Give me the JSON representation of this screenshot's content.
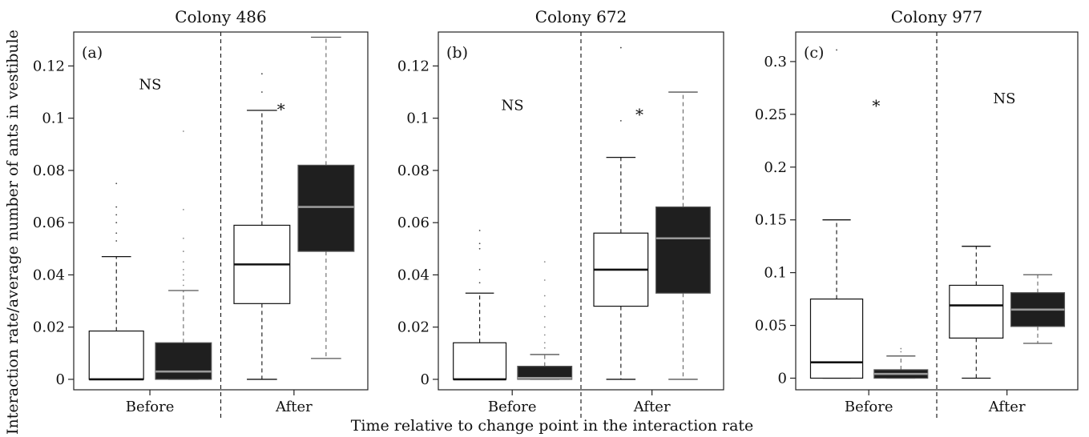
{
  "figure": {
    "ylabel": "Interaction rate/average number of ants in vestibule",
    "xlabel": "Time relative to change point in the interaction rate"
  },
  "colors": {
    "open_box": "#ffffff",
    "filled_box": "#1f1f1f",
    "open_median": "#111111",
    "filled_median": "#9a9a9a",
    "stroke": "#222222"
  },
  "chart_data": [
    {
      "type": "boxplot",
      "title": "Colony 486",
      "panel_label": "(a)",
      "ylim": [
        -0.004,
        0.133
      ],
      "yticks": [
        0,
        0.02,
        0.04,
        0.06,
        0.08,
        0.1,
        0.12
      ],
      "ytick_labels": [
        "0",
        "0.02",
        "0.04",
        "0.06",
        "0.08",
        "0.1",
        "0.12"
      ],
      "categories": [
        "Before",
        "After"
      ],
      "annotations": [
        {
          "text": "NS",
          "group": "Before",
          "y": 0.113
        },
        {
          "text": "*",
          "group": "After",
          "y": 0.105
        }
      ],
      "boxes": [
        {
          "group": "Before",
          "fill": "open",
          "whisker_low": 0,
          "q1": 0,
          "median": 0,
          "q3": 0.0185,
          "whisker_high": 0.047,
          "outliers": [
            0.053,
            0.056,
            0.06,
            0.063,
            0.066,
            0.075
          ]
        },
        {
          "group": "Before",
          "fill": "filled",
          "whisker_low": 0,
          "q1": 0,
          "median": 0.003,
          "q3": 0.014,
          "whisker_high": 0.034,
          "outliers": [
            0.036,
            0.038,
            0.04,
            0.042,
            0.045,
            0.049,
            0.054,
            0.065,
            0.095
          ]
        },
        {
          "group": "After",
          "fill": "open",
          "whisker_low": 0,
          "q1": 0.029,
          "median": 0.044,
          "q3": 0.059,
          "whisker_high": 0.103,
          "outliers": [
            0.11,
            0.117
          ]
        },
        {
          "group": "After",
          "fill": "filled",
          "whisker_low": 0.008,
          "q1": 0.049,
          "median": 0.066,
          "q3": 0.082,
          "whisker_high": 0.131,
          "outliers": []
        }
      ]
    },
    {
      "type": "boxplot",
      "title": "Colony 672",
      "panel_label": "(b)",
      "ylim": [
        -0.004,
        0.133
      ],
      "yticks": [
        0,
        0.02,
        0.04,
        0.06,
        0.08,
        0.1,
        0.12
      ],
      "ytick_labels": [
        "0",
        "0.02",
        "0.04",
        "0.06",
        "0.08",
        "0.1",
        "0.12"
      ],
      "categories": [
        "Before",
        "After"
      ],
      "annotations": [
        {
          "text": "NS",
          "group": "Before",
          "y": 0.105
        },
        {
          "text": "*",
          "group": "After",
          "y": 0.103
        }
      ],
      "boxes": [
        {
          "group": "Before",
          "fill": "open",
          "whisker_low": 0,
          "q1": 0,
          "median": 0,
          "q3": 0.014,
          "whisker_high": 0.033,
          "outliers": [
            0.037,
            0.042,
            0.05,
            0.052,
            0.057
          ]
        },
        {
          "group": "Before",
          "fill": "filled",
          "whisker_low": 0,
          "q1": 0,
          "median": 0.0005,
          "q3": 0.005,
          "whisker_high": 0.0095,
          "outliers": [
            0.012,
            0.014,
            0.017,
            0.02,
            0.024,
            0.028,
            0.032,
            0.038,
            0.045
          ]
        },
        {
          "group": "After",
          "fill": "open",
          "whisker_low": 0,
          "q1": 0.028,
          "median": 0.042,
          "q3": 0.056,
          "whisker_high": 0.085,
          "outliers": [
            0.099,
            0.127
          ]
        },
        {
          "group": "After",
          "fill": "filled",
          "whisker_low": 0,
          "q1": 0.033,
          "median": 0.054,
          "q3": 0.066,
          "whisker_high": 0.11,
          "outliers": []
        }
      ]
    },
    {
      "type": "boxplot",
      "title": "Colony 977",
      "panel_label": "(c)",
      "ylim": [
        -0.011,
        0.328
      ],
      "yticks": [
        0,
        0.05,
        0.1,
        0.15,
        0.2,
        0.25,
        0.3
      ],
      "ytick_labels": [
        "0",
        "0.05",
        "0.1",
        "0.15",
        "0.2",
        "0.25",
        "0.3"
      ],
      "categories": [
        "Before",
        "After"
      ],
      "annotations": [
        {
          "text": "*",
          "group": "Before",
          "y": 0.262
        },
        {
          "text": "NS",
          "group": "After",
          "y": 0.265
        }
      ],
      "boxes": [
        {
          "group": "Before",
          "fill": "open",
          "whisker_low": 0,
          "q1": 0,
          "median": 0.015,
          "q3": 0.075,
          "whisker_high": 0.15,
          "outliers": [
            0.311
          ]
        },
        {
          "group": "Before",
          "fill": "filled",
          "whisker_low": 0,
          "q1": 0,
          "median": 0.004,
          "q3": 0.008,
          "whisker_high": 0.021,
          "outliers": [
            0.025,
            0.028
          ]
        },
        {
          "group": "After",
          "fill": "open",
          "whisker_low": 0,
          "q1": 0.038,
          "median": 0.069,
          "q3": 0.088,
          "whisker_high": 0.125,
          "outliers": []
        },
        {
          "group": "After",
          "fill": "filled",
          "whisker_low": 0.033,
          "q1": 0.049,
          "median": 0.065,
          "q3": 0.081,
          "whisker_high": 0.098,
          "outliers": []
        }
      ]
    }
  ]
}
